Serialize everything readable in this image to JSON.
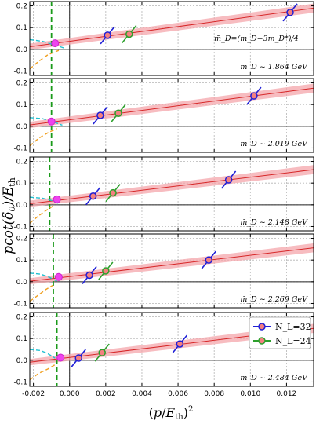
{
  "chart_data": {
    "type": "scatter",
    "ylabel": "pcot(δ0)/Eth",
    "xlabel": "(p/Eth)^2",
    "xlim": [
      -0.0022,
      0.0135
    ],
    "x_ticks": [
      "-0.002",
      "0.000",
      "0.002",
      "0.004",
      "0.006",
      "0.008",
      "0.010",
      "0.012"
    ],
    "x_tick_values": [
      -0.002,
      0.0,
      0.002,
      0.004,
      0.006,
      0.008,
      0.01,
      0.012
    ],
    "ylim": [
      -0.12,
      0.22
    ],
    "y_ticks": [
      "0.2",
      "0.1",
      "0.0",
      "-0.1"
    ],
    "y_tick_values": [
      0.2,
      0.1,
      0.0,
      -0.1
    ],
    "grid": true,
    "legend": {
      "location": "top-right of bottom panel",
      "entries": [
        {
          "label": "N_L=32",
          "color": "#1f1fd6"
        },
        {
          "label": "N_L=24",
          "color": "#2ca02c"
        }
      ]
    },
    "colors": {
      "nl32": "#1f1fd6",
      "nl24": "#2ca02c",
      "fit_line": "#d62728",
      "fit_band": "#f4a6ab",
      "threshold_line": "#1a9a1a",
      "magenta": "#ee44ee",
      "orange_curve": "#f0a020",
      "cyan_curve": "#20c0d0"
    },
    "panels": [
      {
        "note": "m̄_D=(m_D+3m_D*)/4",
        "label": "m̄_D ~ 1.864 GeV",
        "fit": {
          "intercept": 0.037,
          "slope": 11.3,
          "band": 0.013
        },
        "vline_x": -0.001,
        "nl32": [
          {
            "x": 0.0021,
            "y": 0.065
          },
          {
            "x": 0.0122,
            "y": 0.17
          }
        ],
        "nl24": [
          {
            "x": 0.0033,
            "y": 0.07
          }
        ],
        "magenta": {
          "x": -0.0008,
          "y": 0.028
        },
        "orange_curve": [
          [
            -0.0022,
            -0.09
          ],
          [
            -0.0017,
            -0.055
          ],
          [
            -0.0012,
            -0.025
          ],
          [
            -0.0006,
            -0.005
          ]
        ],
        "cyan_curve": [
          [
            -0.0022,
            0.045
          ],
          [
            -0.0015,
            0.037
          ],
          [
            -0.0008,
            0.02
          ],
          [
            -0.0002,
            0.003
          ]
        ]
      },
      {
        "note": "",
        "label": "m̄_D ~ 2.019 GeV",
        "fit": {
          "intercept": 0.03,
          "slope": 10.8,
          "band": 0.013
        },
        "vline_x": -0.001,
        "nl32": [
          {
            "x": 0.0017,
            "y": 0.05
          },
          {
            "x": 0.0102,
            "y": 0.14
          }
        ],
        "nl24": [
          {
            "x": 0.0027,
            "y": 0.06
          }
        ],
        "magenta": {
          "x": -0.001,
          "y": 0.022
        },
        "orange_curve": [
          [
            -0.0022,
            -0.09
          ],
          [
            -0.0017,
            -0.055
          ],
          [
            -0.0012,
            -0.03
          ],
          [
            -0.0007,
            -0.01
          ]
        ],
        "cyan_curve": [
          [
            -0.0022,
            0.04
          ],
          [
            -0.0015,
            0.035
          ],
          [
            -0.0009,
            0.02
          ],
          [
            -0.0004,
            0.005
          ]
        ]
      },
      {
        "note": "",
        "label": "m̄_D ~ 2.148 GeV",
        "fit": {
          "intercept": 0.027,
          "slope": 10.0,
          "band": 0.013
        },
        "vline_x": -0.0011,
        "nl32": [
          {
            "x": 0.0013,
            "y": 0.04
          },
          {
            "x": 0.0088,
            "y": 0.115
          }
        ],
        "nl24": [
          {
            "x": 0.0024,
            "y": 0.055
          }
        ],
        "magenta": {
          "x": -0.0007,
          "y": 0.025
        },
        "orange_curve": [
          [
            -0.0022,
            -0.085
          ],
          [
            -0.0017,
            -0.05
          ],
          [
            -0.0012,
            -0.02
          ],
          [
            -0.0008,
            0.0
          ]
        ],
        "cyan_curve": [
          [
            -0.0022,
            0.035
          ],
          [
            -0.0015,
            0.03
          ],
          [
            -0.001,
            0.02
          ],
          [
            -0.0006,
            0.005
          ]
        ]
      },
      {
        "note": "",
        "label": "m̄_D ~ 2.269 GeV",
        "fit": {
          "intercept": 0.024,
          "slope": 9.8,
          "band": 0.013
        },
        "vline_x": -0.0009,
        "nl32": [
          {
            "x": 0.0011,
            "y": 0.03
          },
          {
            "x": 0.0077,
            "y": 0.1
          }
        ],
        "nl24": [
          {
            "x": 0.002,
            "y": 0.05
          }
        ],
        "magenta": {
          "x": -0.0006,
          "y": 0.022
        },
        "orange_curve": [
          [
            -0.0022,
            -0.09
          ],
          [
            -0.0017,
            -0.06
          ],
          [
            -0.0013,
            -0.035
          ],
          [
            -0.0009,
            -0.015
          ]
        ],
        "cyan_curve": [
          [
            -0.0022,
            0.04
          ],
          [
            -0.0016,
            0.035
          ],
          [
            -0.0011,
            0.02
          ],
          [
            -0.0007,
            0.003
          ]
        ]
      },
      {
        "note": "",
        "label": "m̄_D ~ 2.484 GeV",
        "fit": {
          "intercept": 0.013,
          "slope": 9.9,
          "band": 0.013
        },
        "vline_x": -0.0007,
        "nl32": [
          {
            "x": 0.0005,
            "y": 0.01
          },
          {
            "x": 0.0061,
            "y": 0.075
          }
        ],
        "nl24": [
          {
            "x": 0.0018,
            "y": 0.035
          }
        ],
        "magenta": {
          "x": -0.0005,
          "y": 0.012
        },
        "orange_curve": [
          [
            -0.0022,
            -0.09
          ],
          [
            -0.0017,
            -0.06
          ],
          [
            -0.0012,
            -0.04
          ],
          [
            -0.0008,
            -0.02
          ]
        ],
        "cyan_curve": [
          [
            -0.0022,
            0.05
          ],
          [
            -0.0016,
            0.045
          ],
          [
            -0.0012,
            0.03
          ],
          [
            -0.0008,
            0.01
          ]
        ]
      }
    ]
  }
}
